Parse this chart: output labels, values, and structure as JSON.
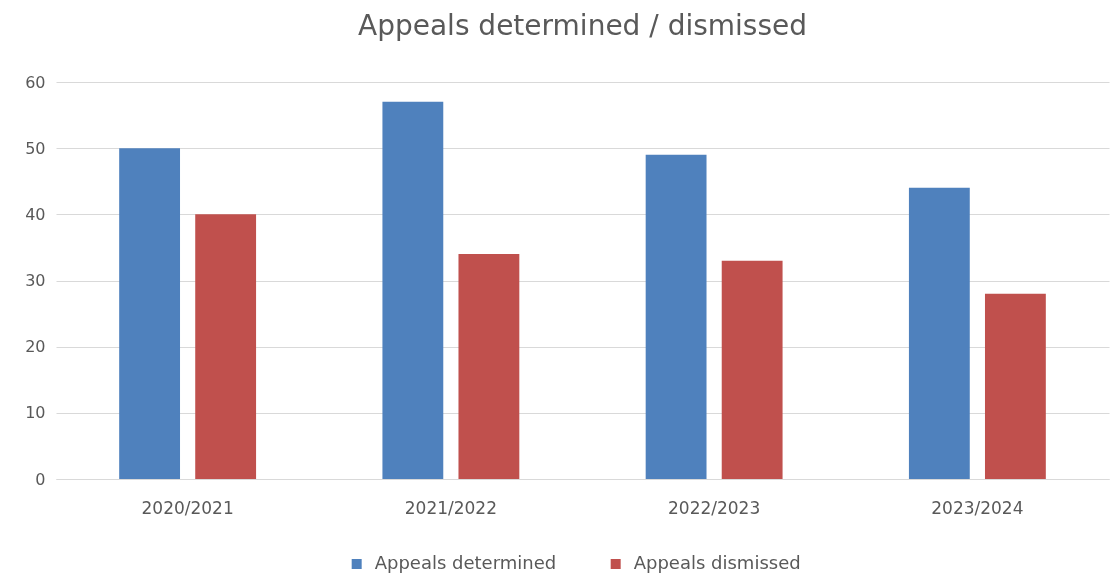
{
  "chart_data": {
    "type": "bar",
    "title": "Appeals determined / dismissed",
    "categories": [
      "2020/2021",
      "2021/2022",
      "2022/2023",
      "2023/2024"
    ],
    "series": [
      {
        "name": "Appeals determined",
        "color": "#4f81bd",
        "values": [
          50,
          57,
          49,
          44
        ]
      },
      {
        "name": "Appeals dismissed",
        "color": "#c0504d",
        "values": [
          40,
          34,
          33,
          28
        ]
      }
    ],
    "ylim": [
      0,
      60
    ],
    "yticks": [
      0,
      10,
      20,
      30,
      40,
      50,
      60
    ],
    "grid": "y",
    "legend": "bottom"
  }
}
